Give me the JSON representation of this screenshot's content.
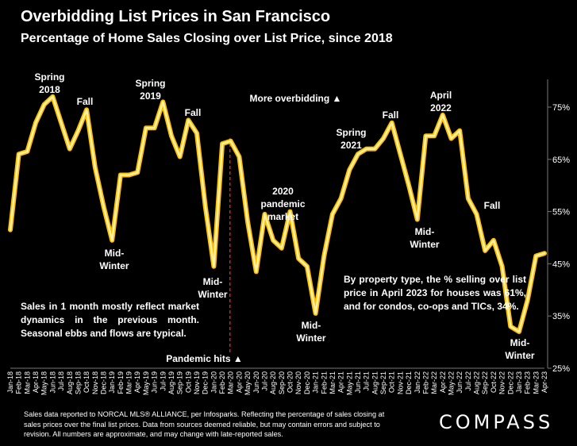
{
  "header": {
    "title": "Overbidding List Prices in San Francisco",
    "subtitle": "Percentage of Home Sales Closing over List Price, since 2018"
  },
  "annotations": {
    "spring2018": "Spring 2018",
    "fall2018": "Fall",
    "midwinter1": "Mid-Winter",
    "spring2019": "Spring 2019",
    "fall2019": "Fall",
    "midwinter2": "Mid-Winter",
    "more_overbidding": "More overbidding ▲",
    "pandemic2020": "2020 pandemic market",
    "pandemic_hits": "Pandemic hits ▲",
    "midwinter3": "Mid-Winter",
    "spring2021": "Spring 2021",
    "fall2021": "Fall",
    "midwinter4": "Mid-Winter",
    "april2022": "April 2022",
    "fall2022": "Fall",
    "midwinter5": "Mid-Winter"
  },
  "notes": {
    "left_note": "Sales in 1 month mostly reflect market dynamics in the previous month. Seasonal ebbs and flows are typical.",
    "right_note": "By property type, the % selling over list price in April 2023 for houses was 61%, and for condos, co-ops and TICs, 34%."
  },
  "footer": {
    "text": "Sales data reported to NORCAL MLS® ALLIANCE, per Infosparks. Reflecting the percentage of sales closing at sales prices over the final list prices. Data from sources deemed reliable, but may contain errors and subject to revision. All numbers are approximate, and may change with late-reported sales.",
    "logo": "COMPASS"
  },
  "colors": {
    "background": "#000000",
    "line_outer": "#FFC000",
    "line_inner": "#FFF2A8",
    "pandemic_marker": "#D02020",
    "grid": "#404040"
  },
  "chart_data": {
    "type": "line",
    "title": "Overbidding List Prices in San Francisco",
    "subtitle": "Percentage of Home Sales Closing over List Price, since 2018",
    "ylim": [
      25,
      80
    ],
    "y_ticks": [
      25,
      35,
      45,
      55,
      65,
      75
    ],
    "y_tick_labels": [
      "25%",
      "35%",
      "45%",
      "55%",
      "65%",
      "75%"
    ],
    "y_axis_side": "right",
    "grid": false,
    "x": [
      "Jan-18",
      "Feb-18",
      "Mar-18",
      "Apr-18",
      "May-18",
      "Jun-18",
      "Jul-18",
      "Aug-18",
      "Sep-18",
      "Oct-18",
      "Nov-18",
      "Dec-18",
      "Jan-19",
      "Feb-19",
      "Mar-19",
      "Apr-19",
      "May-19",
      "Jun-19",
      "Jul-19",
      "Aug-19",
      "Sep-19",
      "Oct-19",
      "Nov-19",
      "Dec-19",
      "Jan-20",
      "Feb-20",
      "Mar-20",
      "Apr-20",
      "May-20",
      "Jun-20",
      "Jul-20",
      "Aug-20",
      "Sep-20",
      "Oct-20",
      "Nov-20",
      "Dec-20",
      "Jan-21",
      "Feb-21",
      "Mar-21",
      "Apr-21",
      "May-21",
      "Jun-21",
      "Jul-21",
      "Aug-21",
      "Sep-21",
      "Oct-21",
      "Nov-21",
      "Dec-21",
      "Jan-22",
      "Feb-22",
      "Mar-22",
      "Apr-22",
      "May-22",
      "Jun-22",
      "Jul-22",
      "Aug-22",
      "Sep-22",
      "Oct-22",
      "Nov-22",
      "Dec-22",
      "Jan-23",
      "Feb-23",
      "Mar-23",
      "Apr-23"
    ],
    "series": [
      {
        "values": [
          51.5,
          66.0,
          66.5,
          72.0,
          75.5,
          77.0,
          72.0,
          67.0,
          70.5,
          74.5,
          63.5,
          56.0,
          49.5,
          62.0,
          62.0,
          62.5,
          71.0,
          71.0,
          76.0,
          69.5,
          65.5,
          72.5,
          70.0,
          56.0,
          44.5,
          68.0,
          68.5,
          65.5,
          53.0,
          43.5,
          54.5,
          49.5,
          48.0,
          55.0,
          46.0,
          44.5,
          35.5,
          46.5,
          54.5,
          57.5,
          63.0,
          66.0,
          67.0,
          67.0,
          69.0,
          72.0,
          66.0,
          60.0,
          53.5,
          69.5,
          69.5,
          73.5,
          69.0,
          70.5,
          57.5,
          54.5,
          47.5,
          49.5,
          44.5,
          33.0,
          32.0,
          38.0,
          46.5,
          47.0
        ]
      }
    ],
    "pandemic_marker_x": "Mar-20"
  }
}
